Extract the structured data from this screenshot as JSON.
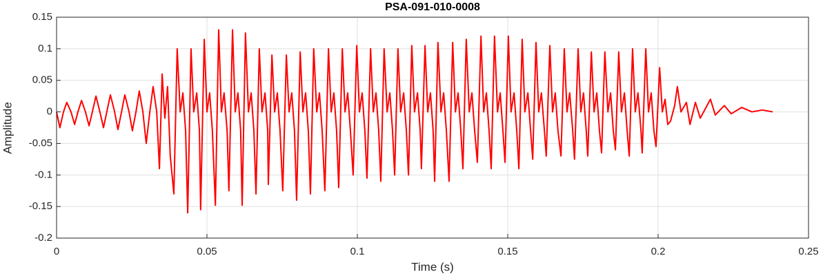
{
  "chart_data": {
    "type": "line",
    "title": "PSA-091-010-0008",
    "xlabel": "Time (s)",
    "ylabel": "Amplitude",
    "color": "#ff0000",
    "grid": true,
    "xlim": [
      0,
      0.25
    ],
    "xticks": [
      0,
      0.05,
      0.1,
      0.15,
      0.2,
      0.25
    ],
    "ylim": [
      -0.2,
      0.15
    ],
    "yticks": [
      0.15,
      0.1,
      0.05,
      0,
      -0.05,
      -0.1,
      -0.15,
      -0.2
    ],
    "x": [
      0,
      0.0011,
      0.0023,
      0.0034,
      0.0048,
      0.006,
      0.0071,
      0.0083,
      0.0096,
      0.0108,
      0.0119,
      0.0131,
      0.0144,
      0.0156,
      0.0167,
      0.0179,
      0.0193,
      0.0204,
      0.0216,
      0.0227,
      0.0241,
      0.0252,
      0.0264,
      0.0275,
      0.0287,
      0.0298,
      0.031,
      0.0321,
      0.0333,
      0.0342,
      0.0351,
      0.036,
      0.0369,
      0.0378,
      0.039,
      0.0401,
      0.0411,
      0.042,
      0.0429,
      0.0436,
      0.0447,
      0.0456,
      0.0466,
      0.0475,
      0.0479,
      0.0491,
      0.05,
      0.0509,
      0.0518,
      0.0528,
      0.0539,
      0.0548,
      0.0557,
      0.0567,
      0.0573,
      0.0585,
      0.0594,
      0.0603,
      0.0612,
      0.0617,
      0.0628,
      0.0638,
      0.0647,
      0.0656,
      0.0663,
      0.0674,
      0.0683,
      0.0693,
      0.0702,
      0.0704,
      0.0716,
      0.0725,
      0.0734,
      0.0743,
      0.0752,
      0.0764,
      0.0773,
      0.0782,
      0.0791,
      0.0798,
      0.081,
      0.0819,
      0.0828,
      0.0837,
      0.0844,
      0.0855,
      0.0865,
      0.0874,
      0.0883,
      0.0892,
      0.0904,
      0.0913,
      0.0922,
      0.0931,
      0.0938,
      0.095,
      0.0959,
      0.0968,
      0.0977,
      0.0986,
      0.0998,
      0.1007,
      0.1016,
      0.1025,
      0.1032,
      0.1044,
      0.1053,
      0.1062,
      0.1071,
      0.1078,
      0.1089,
      0.1099,
      0.1108,
      0.1117,
      0.1124,
      0.1135,
      0.1144,
      0.1154,
      0.1163,
      0.117,
      0.1181,
      0.119,
      0.12,
      0.1209,
      0.1213,
      0.1225,
      0.1234,
      0.1243,
      0.1252,
      0.1257,
      0.1268,
      0.1278,
      0.1287,
      0.1296,
      0.1305,
      0.1317,
      0.1326,
      0.1335,
      0.1344,
      0.1351,
      0.1362,
      0.1372,
      0.1381,
      0.139,
      0.1399,
      0.1411,
      0.142,
      0.1429,
      0.1438,
      0.1445,
      0.1456,
      0.1466,
      0.1475,
      0.1484,
      0.1491,
      0.1502,
      0.1511,
      0.1521,
      0.153,
      0.1537,
      0.1548,
      0.1557,
      0.1567,
      0.1576,
      0.1583,
      0.1594,
      0.1603,
      0.1612,
      0.1622,
      0.1628,
      0.164,
      0.1649,
      0.1658,
      0.1667,
      0.1677,
      0.1688,
      0.1697,
      0.1706,
      0.1716,
      0.1722,
      0.1734,
      0.1743,
      0.1752,
      0.1761,
      0.1766,
      0.1778,
      0.1787,
      0.1796,
      0.1805,
      0.1812,
      0.1823,
      0.1833,
      0.1842,
      0.1851,
      0.1858,
      0.1869,
      0.1878,
      0.1888,
      0.1897,
      0.1904,
      0.1915,
      0.1924,
      0.1933,
      0.1943,
      0.1947,
      0.1959,
      0.1968,
      0.1977,
      0.1986,
      0.1993,
      0.2005,
      0.2014,
      0.2023,
      0.2032,
      0.2041,
      0.2055,
      0.2064,
      0.2076,
      0.2094,
      0.2106,
      0.2124,
      0.214,
      0.2174,
      0.219,
      0.222,
      0.2243,
      0.2278,
      0.2312,
      0.2346,
      0.2381
    ],
    "values": [
      0,
      -0.025,
      0,
      0.015,
      0,
      -0.02,
      0,
      0.018,
      0,
      -0.022,
      0,
      0.025,
      0,
      -0.025,
      0,
      0.027,
      0,
      -0.028,
      0,
      0.027,
      0,
      -0.03,
      0,
      0.033,
      0,
      -0.05,
      0,
      0.04,
      0,
      -0.09,
      0.06,
      -0.01,
      0.04,
      -0.07,
      -0.13,
      0.1,
      0,
      0.03,
      -0.03,
      -0.16,
      0.1,
      0,
      0.03,
      -0.03,
      -0.155,
      0.115,
      0,
      0.03,
      -0.03,
      -0.148,
      0.13,
      0,
      0.03,
      -0.03,
      -0.125,
      0.13,
      0,
      0.03,
      -0.03,
      -0.148,
      0.125,
      0,
      0.03,
      -0.03,
      -0.13,
      0.1,
      0,
      0.03,
      -0.03,
      -0.115,
      0.09,
      0,
      0.03,
      -0.03,
      -0.125,
      0.09,
      0,
      0.03,
      -0.03,
      -0.14,
      0.095,
      0,
      0.03,
      -0.03,
      -0.13,
      0.1,
      0,
      0.03,
      -0.03,
      -0.125,
      0.1,
      0,
      0.03,
      -0.03,
      -0.12,
      0.1,
      0,
      0.03,
      -0.03,
      -0.1,
      0.105,
      0,
      0.03,
      -0.03,
      -0.105,
      0.1,
      0,
      0.03,
      -0.03,
      -0.11,
      0.1,
      0,
      0.03,
      -0.03,
      -0.1,
      0.1,
      0,
      0.03,
      -0.03,
      -0.1,
      0.105,
      0,
      0.03,
      -0.03,
      -0.09,
      0.105,
      0,
      0.03,
      -0.03,
      -0.11,
      0.11,
      0,
      0.03,
      -0.03,
      -0.11,
      0.11,
      0,
      0.03,
      -0.03,
      -0.09,
      0.115,
      0,
      0.03,
      -0.03,
      -0.08,
      0.12,
      0,
      0.03,
      -0.03,
      -0.09,
      0.12,
      0,
      0.03,
      -0.03,
      -0.08,
      0.12,
      0,
      0.03,
      -0.03,
      -0.09,
      0.115,
      0,
      0.03,
      -0.03,
      -0.075,
      0.11,
      0,
      0.03,
      -0.03,
      -0.07,
      0.105,
      0,
      0.03,
      -0.03,
      -0.07,
      0.1,
      0,
      0.03,
      -0.03,
      -0.075,
      0.1,
      0,
      0.03,
      -0.03,
      -0.07,
      0.095,
      0,
      0.03,
      -0.03,
      -0.065,
      0.095,
      0,
      0.03,
      -0.03,
      -0.06,
      0.095,
      0,
      0.03,
      -0.03,
      -0.07,
      0.1,
      0,
      0.03,
      -0.03,
      -0.065,
      0.1,
      0,
      0.03,
      -0.03,
      -0.055,
      0.07,
      0,
      0.02,
      -0.02,
      -0.015,
      0.01,
      0.04,
      0,
      0.015,
      -0.02,
      0.015,
      -0.01,
      0.02,
      -0.005,
      0.01,
      -0.003,
      0.007,
      0,
      0.003,
      0
    ]
  }
}
